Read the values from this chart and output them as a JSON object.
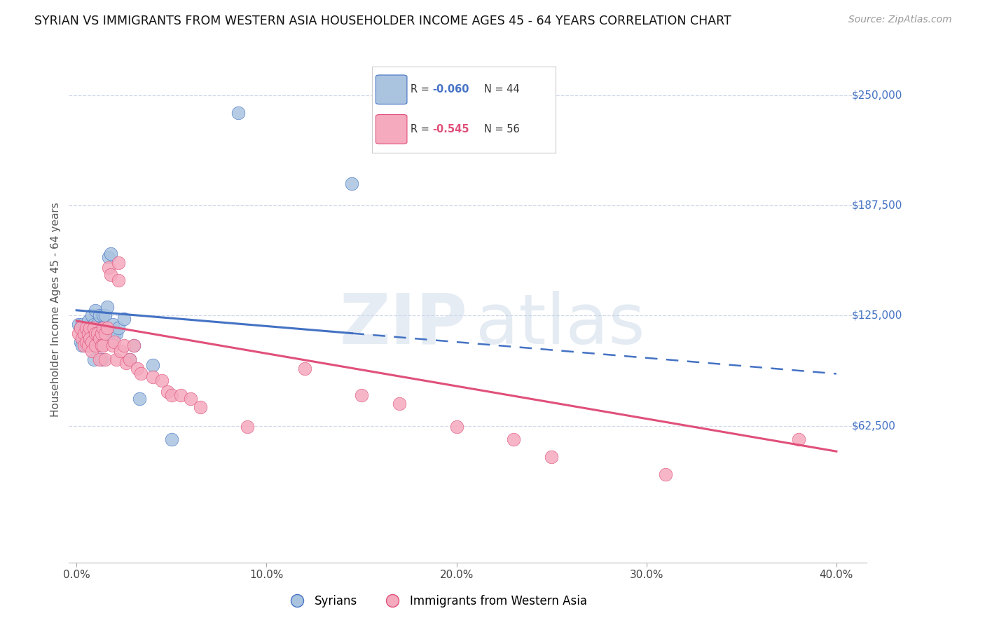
{
  "title": "SYRIAN VS IMMIGRANTS FROM WESTERN ASIA HOUSEHOLDER INCOME AGES 45 - 64 YEARS CORRELATION CHART",
  "source": "Source: ZipAtlas.com",
  "ylabel": "Householder Income Ages 45 - 64 years",
  "xlabel_vals": [
    0.0,
    0.1,
    0.2,
    0.3,
    0.4
  ],
  "xlabel_ticks": [
    "0.0%",
    "10.0%",
    "20.0%",
    "30.0%",
    "40.0%"
  ],
  "ylabel_right_vals": [
    250000,
    187500,
    125000,
    62500
  ],
  "ylabel_right_labels": [
    "$250,000",
    "$187,500",
    "$125,000",
    "$62,500"
  ],
  "xlim": [
    0.0,
    0.4
  ],
  "ylim": [
    0,
    270000
  ],
  "blue_color": "#aac4e0",
  "pink_color": "#f5aabe",
  "blue_line_color": "#4472c4",
  "pink_line_color": "#e0507a",
  "grid_color": "#d0d8e8",
  "background_color": "#ffffff",
  "blue_R": -0.06,
  "blue_N": 44,
  "pink_R": -0.545,
  "pink_N": 56,
  "legend_blue_label": "Syrians",
  "legend_pink_label": "Immigrants from Western Asia",
  "syrians_x": [
    0.001,
    0.002,
    0.002,
    0.003,
    0.003,
    0.004,
    0.004,
    0.005,
    0.005,
    0.006,
    0.006,
    0.007,
    0.007,
    0.008,
    0.008,
    0.008,
    0.009,
    0.009,
    0.01,
    0.01,
    0.011,
    0.011,
    0.012,
    0.012,
    0.013,
    0.013,
    0.014,
    0.014,
    0.015,
    0.016,
    0.017,
    0.018,
    0.019,
    0.02,
    0.021,
    0.022,
    0.025,
    0.028,
    0.03,
    0.033,
    0.04,
    0.05,
    0.085,
    0.145
  ],
  "syrians_y": [
    120000,
    118000,
    110000,
    120000,
    108000,
    118000,
    112000,
    116000,
    108000,
    122000,
    115000,
    118000,
    112000,
    125000,
    118000,
    108000,
    120000,
    100000,
    115000,
    128000,
    120000,
    110000,
    125000,
    108000,
    118000,
    100000,
    112000,
    125000,
    125000,
    130000,
    158000,
    160000,
    120000,
    115000,
    115000,
    118000,
    123000,
    100000,
    108000,
    78000,
    97000,
    55000,
    240000,
    200000
  ],
  "western_x": [
    0.001,
    0.002,
    0.003,
    0.004,
    0.004,
    0.005,
    0.005,
    0.006,
    0.006,
    0.007,
    0.007,
    0.008,
    0.008,
    0.009,
    0.01,
    0.01,
    0.011,
    0.012,
    0.012,
    0.013,
    0.013,
    0.014,
    0.014,
    0.015,
    0.015,
    0.016,
    0.017,
    0.018,
    0.019,
    0.02,
    0.021,
    0.022,
    0.022,
    0.023,
    0.025,
    0.026,
    0.028,
    0.03,
    0.032,
    0.034,
    0.04,
    0.045,
    0.048,
    0.05,
    0.055,
    0.06,
    0.065,
    0.09,
    0.12,
    0.15,
    0.17,
    0.2,
    0.23,
    0.25,
    0.31,
    0.38
  ],
  "western_y": [
    115000,
    118000,
    112000,
    115000,
    108000,
    118000,
    110000,
    115000,
    108000,
    118000,
    112000,
    110000,
    105000,
    118000,
    115000,
    108000,
    115000,
    112000,
    100000,
    115000,
    108000,
    118000,
    108000,
    115000,
    100000,
    118000,
    152000,
    148000,
    108000,
    110000,
    100000,
    155000,
    145000,
    105000,
    108000,
    98000,
    100000,
    108000,
    95000,
    92000,
    90000,
    88000,
    82000,
    80000,
    80000,
    78000,
    73000,
    62000,
    95000,
    80000,
    75000,
    62000,
    55000,
    45000,
    35000,
    55000
  ]
}
